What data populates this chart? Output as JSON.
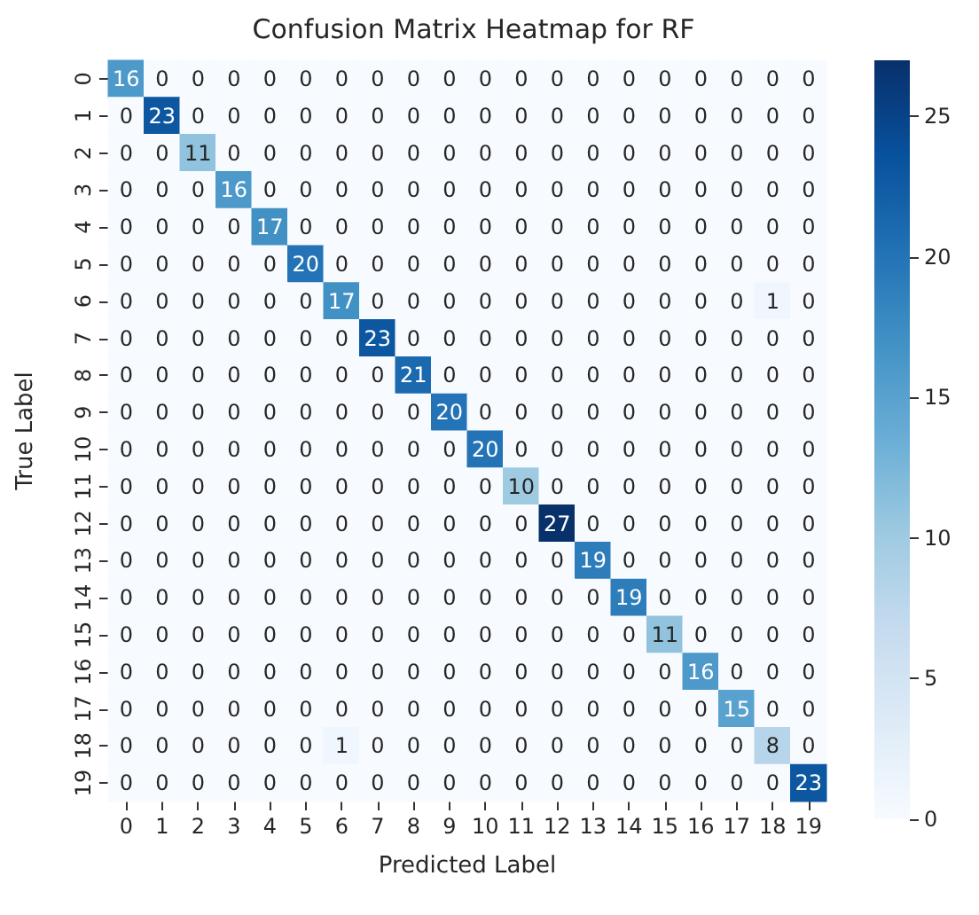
{
  "chart_data": {
    "type": "heatmap",
    "title": "Confusion Matrix Heatmap for RF",
    "xlabel": "Predicted Label",
    "ylabel": "True Label",
    "categories": [
      "0",
      "1",
      "2",
      "3",
      "4",
      "5",
      "6",
      "7",
      "8",
      "9",
      "10",
      "11",
      "12",
      "13",
      "14",
      "15",
      "16",
      "17",
      "18",
      "19"
    ],
    "y_categories": [
      "0",
      "1",
      "2",
      "3",
      "4",
      "5",
      "6",
      "7",
      "8",
      "9",
      "10",
      "11",
      "12",
      "13",
      "14",
      "15",
      "16",
      "17",
      "18",
      "19"
    ],
    "cells": [
      [
        16,
        0,
        0,
        0,
        0,
        0,
        0,
        0,
        0,
        0,
        0,
        0,
        0,
        0,
        0,
        0,
        0,
        0,
        0,
        0
      ],
      [
        0,
        23,
        0,
        0,
        0,
        0,
        0,
        0,
        0,
        0,
        0,
        0,
        0,
        0,
        0,
        0,
        0,
        0,
        0,
        0
      ],
      [
        0,
        0,
        11,
        0,
        0,
        0,
        0,
        0,
        0,
        0,
        0,
        0,
        0,
        0,
        0,
        0,
        0,
        0,
        0,
        0
      ],
      [
        0,
        0,
        0,
        16,
        0,
        0,
        0,
        0,
        0,
        0,
        0,
        0,
        0,
        0,
        0,
        0,
        0,
        0,
        0,
        0
      ],
      [
        0,
        0,
        0,
        0,
        17,
        0,
        0,
        0,
        0,
        0,
        0,
        0,
        0,
        0,
        0,
        0,
        0,
        0,
        0,
        0
      ],
      [
        0,
        0,
        0,
        0,
        0,
        20,
        0,
        0,
        0,
        0,
        0,
        0,
        0,
        0,
        0,
        0,
        0,
        0,
        0,
        0
      ],
      [
        0,
        0,
        0,
        0,
        0,
        0,
        17,
        0,
        0,
        0,
        0,
        0,
        0,
        0,
        0,
        0,
        0,
        0,
        1,
        0
      ],
      [
        0,
        0,
        0,
        0,
        0,
        0,
        0,
        23,
        0,
        0,
        0,
        0,
        0,
        0,
        0,
        0,
        0,
        0,
        0,
        0
      ],
      [
        0,
        0,
        0,
        0,
        0,
        0,
        0,
        0,
        21,
        0,
        0,
        0,
        0,
        0,
        0,
        0,
        0,
        0,
        0,
        0
      ],
      [
        0,
        0,
        0,
        0,
        0,
        0,
        0,
        0,
        0,
        20,
        0,
        0,
        0,
        0,
        0,
        0,
        0,
        0,
        0,
        0
      ],
      [
        0,
        0,
        0,
        0,
        0,
        0,
        0,
        0,
        0,
        0,
        20,
        0,
        0,
        0,
        0,
        0,
        0,
        0,
        0,
        0
      ],
      [
        0,
        0,
        0,
        0,
        0,
        0,
        0,
        0,
        0,
        0,
        0,
        10,
        0,
        0,
        0,
        0,
        0,
        0,
        0,
        0
      ],
      [
        0,
        0,
        0,
        0,
        0,
        0,
        0,
        0,
        0,
        0,
        0,
        0,
        27,
        0,
        0,
        0,
        0,
        0,
        0,
        0
      ],
      [
        0,
        0,
        0,
        0,
        0,
        0,
        0,
        0,
        0,
        0,
        0,
        0,
        0,
        19,
        0,
        0,
        0,
        0,
        0,
        0
      ],
      [
        0,
        0,
        0,
        0,
        0,
        0,
        0,
        0,
        0,
        0,
        0,
        0,
        0,
        0,
        19,
        0,
        0,
        0,
        0,
        0
      ],
      [
        0,
        0,
        0,
        0,
        0,
        0,
        0,
        0,
        0,
        0,
        0,
        0,
        0,
        0,
        0,
        11,
        0,
        0,
        0,
        0
      ],
      [
        0,
        0,
        0,
        0,
        0,
        0,
        0,
        0,
        0,
        0,
        0,
        0,
        0,
        0,
        0,
        0,
        16,
        0,
        0,
        0
      ],
      [
        0,
        0,
        0,
        0,
        0,
        0,
        0,
        0,
        0,
        0,
        0,
        0,
        0,
        0,
        0,
        0,
        0,
        15,
        0,
        0
      ],
      [
        0,
        0,
        0,
        0,
        0,
        0,
        1,
        0,
        0,
        0,
        0,
        0,
        0,
        0,
        0,
        0,
        0,
        0,
        8,
        0
      ],
      [
        0,
        0,
        0,
        0,
        0,
        0,
        0,
        0,
        0,
        0,
        0,
        0,
        0,
        0,
        0,
        0,
        0,
        0,
        0,
        23
      ]
    ],
    "data_labels": true,
    "clim": [
      0,
      27
    ],
    "cticks": [
      0,
      5,
      10,
      15,
      20,
      25
    ]
  }
}
